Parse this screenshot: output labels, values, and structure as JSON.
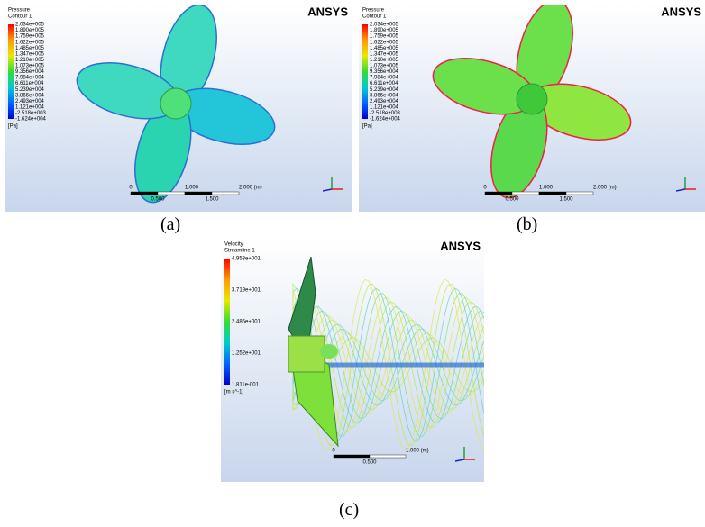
{
  "panels": [
    {
      "legend": {
        "title": [
          "Pressure",
          "Contour 1"
        ],
        "values": [
          "2.034e+005",
          "1.890e+005",
          "1.759e+005",
          "1.622e+005",
          "1.485e+005",
          "1.347e+005",
          "1.210e+005",
          "1.073e+005",
          "9.356e+004",
          "7.984e+004",
          "6.611e+004",
          "5.239e+004",
          "3.866e+004",
          "2.493e+004",
          "1.121e+004",
          "-2.518e+003",
          "-1.624e+004"
        ],
        "unit": "[Pa]"
      },
      "logo": "ANSYS",
      "scale": {
        "labels": [
          "0",
          "1.000",
          "2.000 (m)"
        ],
        "sublabels": [
          "0.500",
          "1.500"
        ]
      },
      "caption": "(a)"
    },
    {
      "legend": {
        "title": [
          "Pressure",
          "Contour 1"
        ],
        "values": [
          "2.034e+005",
          "1.890e+005",
          "1.759e+005",
          "1.622e+005",
          "1.485e+005",
          "1.347e+005",
          "1.210e+005",
          "1.073e+005",
          "9.356e+004",
          "7.984e+004",
          "6.611e+004",
          "5.239e+004",
          "3.866e+004",
          "2.493e+004",
          "1.121e+004",
          "-2.518e+003",
          "-1.624e+004"
        ],
        "unit": "[Pa]"
      },
      "logo": "ANSYS",
      "scale": {
        "labels": [
          "0",
          "1.000",
          "2.000 (m)"
        ],
        "sublabels": [
          "0.500",
          "1.500"
        ]
      },
      "caption": "(b)"
    },
    {
      "legend": {
        "title": [
          "Velocity",
          "Streamline 1"
        ],
        "values": [
          "4.953e+001",
          "3.719e+001",
          "2.486e+001",
          "1.252e+001",
          "1.811e-001"
        ],
        "unit": "[m s^-1]"
      },
      "logo": "ANSYS",
      "scale": {
        "labels": [
          "0",
          "1.000 (m)"
        ],
        "sublabels": [
          "0.500"
        ]
      },
      "caption": "(c)"
    }
  ]
}
